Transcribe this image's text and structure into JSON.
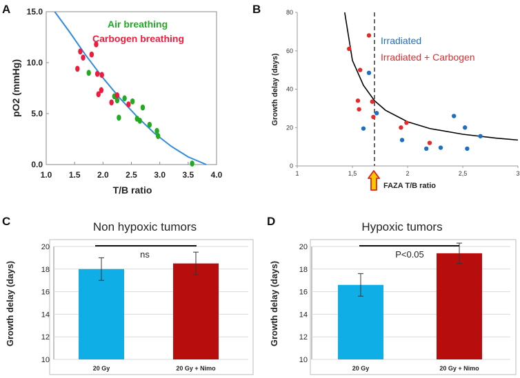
{
  "panel_labels": {
    "a": "A",
    "b": "B",
    "c": "C",
    "d": "D"
  },
  "chart_data": [
    {
      "panel": "A",
      "type": "scatter",
      "title": "",
      "xlabel": "T/B ratio",
      "ylabel": "pO2 (mmHg)",
      "xlim": [
        1.0,
        4.0
      ],
      "ylim": [
        0.0,
        15.0
      ],
      "x_ticks": [
        "1.0",
        "1.5",
        "2.0",
        "2.5",
        "3.0",
        "3.5",
        "4.0"
      ],
      "y_ticks": [
        "0.0",
        "5.0",
        "10.0",
        "15.0"
      ],
      "legend": [
        "Air breathing",
        "Carbogen breathing"
      ],
      "series": [
        {
          "name": "Air breathing",
          "color": "#22aa22",
          "points": [
            [
              1.75,
              9.0
            ],
            [
              2.2,
              6.7
            ],
            [
              2.25,
              6.3
            ],
            [
              2.28,
              4.6
            ],
            [
              2.38,
              6.5
            ],
            [
              2.52,
              6.2
            ],
            [
              2.6,
              4.5
            ],
            [
              2.65,
              4.3
            ],
            [
              2.7,
              5.6
            ],
            [
              2.82,
              3.9
            ],
            [
              2.95,
              3.3
            ],
            [
              2.97,
              2.8
            ],
            [
              3.57,
              0.1
            ]
          ]
        },
        {
          "name": "Carbogen breathing",
          "color": "#ee1c3c",
          "points": [
            [
              1.55,
              9.4
            ],
            [
              1.6,
              11.1
            ],
            [
              1.65,
              10.5
            ],
            [
              1.8,
              10.8
            ],
            [
              1.88,
              11.8
            ],
            [
              1.9,
              8.9
            ],
            [
              1.92,
              6.9
            ],
            [
              1.97,
              7.3
            ],
            [
              1.98,
              8.8
            ],
            [
              2.15,
              6.1
            ],
            [
              2.25,
              6.8
            ],
            [
              2.45,
              5.9
            ]
          ]
        },
        {
          "name": "fit",
          "color": "#2f8be0",
          "points": [
            [
              1.15,
              15.0
            ],
            [
              1.4,
              13.1
            ],
            [
              1.7,
              10.7
            ],
            [
              2.0,
              8.5
            ],
            [
              2.3,
              6.5
            ],
            [
              2.6,
              4.7
            ],
            [
              2.9,
              3.1
            ],
            [
              3.2,
              1.8
            ],
            [
              3.5,
              0.75
            ],
            [
              3.82,
              0.0
            ]
          ]
        }
      ]
    },
    {
      "panel": "B",
      "type": "scatter",
      "title": "",
      "xlabel": "FAZA T/B ratio",
      "ylabel": "Growth delay (days)",
      "xlim": [
        1,
        3
      ],
      "ylim": [
        0,
        80
      ],
      "x_ticks": [
        "1",
        "1,5",
        "2",
        "2,5",
        "3"
      ],
      "y_ticks": [
        "0",
        "20",
        "40",
        "60",
        "80"
      ],
      "threshold_x": 1.7,
      "legend": [
        "Irradiated",
        "Irradiated + Carbogen"
      ],
      "series": [
        {
          "name": "Irradiated",
          "color": "#1f6fc0",
          "points": [
            [
              1.6,
              19.5
            ],
            [
              1.65,
              48.5
            ],
            [
              1.72,
              27.5
            ],
            [
              1.95,
              13.5
            ],
            [
              2.17,
              9.0
            ],
            [
              2.3,
              9.5
            ],
            [
              2.42,
              26.0
            ],
            [
              2.52,
              20.0
            ],
            [
              2.54,
              9.0
            ],
            [
              2.66,
              15.5
            ]
          ]
        },
        {
          "name": "Irradiated + Carbogen",
          "color": "#e42a2a",
          "points": [
            [
              1.47,
              61.0
            ],
            [
              1.55,
              34.0
            ],
            [
              1.56,
              29.5
            ],
            [
              1.57,
              50.0
            ],
            [
              1.65,
              68.0
            ],
            [
              1.68,
              33.5
            ],
            [
              1.69,
              25.5
            ],
            [
              1.94,
              20.0
            ],
            [
              1.99,
              22.5
            ],
            [
              2.2,
              12.0
            ]
          ]
        },
        {
          "name": "fit",
          "color": "#000000",
          "points": [
            [
              1.43,
              80.0
            ],
            [
              1.5,
              55.0
            ],
            [
              1.6,
              42.0
            ],
            [
              1.7,
              34.0
            ],
            [
              1.8,
              29.0
            ],
            [
              2.0,
              23.0
            ],
            [
              2.2,
              19.5
            ],
            [
              2.5,
              16.5
            ],
            [
              2.8,
              14.5
            ],
            [
              3.0,
              13.5
            ]
          ]
        }
      ]
    },
    {
      "panel": "C",
      "type": "bar",
      "title": "Non hypoxic tumors",
      "xlabel": "",
      "ylabel": "Growth delay (days)",
      "categories": [
        "20 Gy",
        "20 Gy + Nimo"
      ],
      "values": [
        18.0,
        18.5
      ],
      "errors": [
        1.0,
        1.0
      ],
      "colors": [
        "#10aee6",
        "#b80d0d"
      ],
      "ylim": [
        10,
        20
      ],
      "y_ticks": [
        "10",
        "12",
        "14",
        "16",
        "18",
        "20"
      ],
      "annotation": "ns"
    },
    {
      "panel": "D",
      "type": "bar",
      "title": "Hypoxic tumors",
      "xlabel": "",
      "ylabel": "Growth delay (days)",
      "categories": [
        "20 Gy",
        "20 Gy + Nimo"
      ],
      "values": [
        16.6,
        19.4
      ],
      "errors": [
        1.0,
        0.9
      ],
      "colors": [
        "#10aee6",
        "#b80d0d"
      ],
      "ylim": [
        10,
        20
      ],
      "y_ticks": [
        "10",
        "12",
        "14",
        "16",
        "18",
        "20"
      ],
      "annotation": "P<0.05"
    }
  ]
}
